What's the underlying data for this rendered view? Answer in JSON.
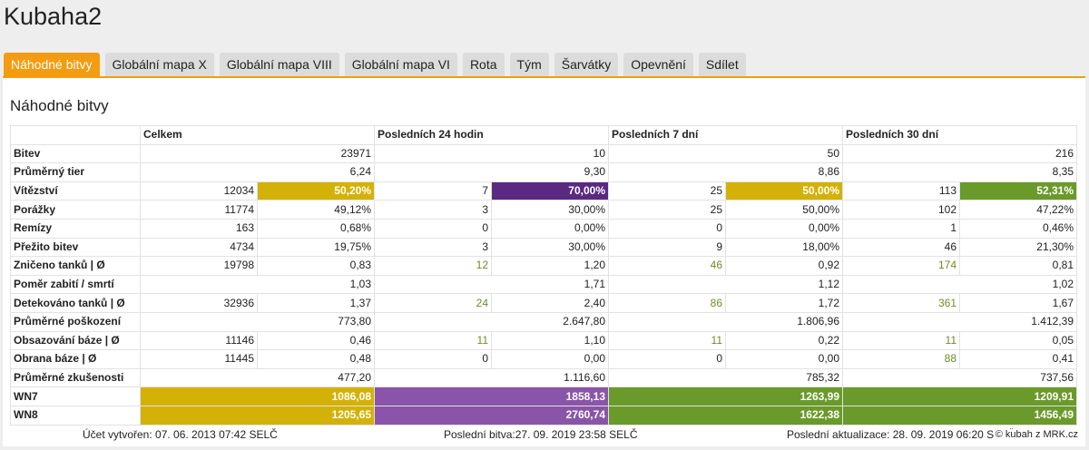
{
  "page_title": "Kubaha2",
  "tabs": [
    {
      "label": "Náhodné bitvy",
      "active": true
    },
    {
      "label": "Globální mapa X",
      "active": false
    },
    {
      "label": "Globální mapa VIII",
      "active": false
    },
    {
      "label": "Globální mapa VI",
      "active": false
    },
    {
      "label": "Rota",
      "active": false
    },
    {
      "label": "Tým",
      "active": false
    },
    {
      "label": "Šarvátky",
      "active": false
    },
    {
      "label": "Opevnění",
      "active": false
    },
    {
      "label": "Sdílet",
      "active": false
    }
  ],
  "panel_title": "Náhodné bitvy",
  "table": {
    "headers": [
      "",
      "Celkem",
      "Posledních 24 hodin",
      "Posledních 7 dní",
      "Posledních 30 dní"
    ],
    "rows": [
      {
        "label": "Bitev",
        "type": "single",
        "cells": [
          {
            "value": "23971"
          },
          {
            "value": "10"
          },
          {
            "value": "50"
          },
          {
            "value": "216"
          }
        ]
      },
      {
        "label": "Průměrný tier",
        "type": "single",
        "cells": [
          {
            "value": "6,24"
          },
          {
            "value": "9,30"
          },
          {
            "value": "8,86"
          },
          {
            "value": "8,35"
          }
        ]
      },
      {
        "label": "Vítězství",
        "type": "pair",
        "cells": [
          {
            "count": "12034",
            "pct": "50,20%",
            "color": "yellow"
          },
          {
            "count": "7",
            "pct": "70,00%",
            "color": "purple"
          },
          {
            "count": "25",
            "pct": "50,00%",
            "color": "yellow"
          },
          {
            "count": "113",
            "pct": "52,31%",
            "color": "green"
          }
        ]
      },
      {
        "label": "Porážky",
        "type": "pair",
        "cells": [
          {
            "count": "11774",
            "pct": "49,12%"
          },
          {
            "count": "3",
            "pct": "30,00%"
          },
          {
            "count": "25",
            "pct": "50,00%"
          },
          {
            "count": "102",
            "pct": "47,22%"
          }
        ]
      },
      {
        "label": "Remízy",
        "type": "pair",
        "cells": [
          {
            "count": "163",
            "pct": "0,68%"
          },
          {
            "count": "0",
            "pct": "0,00%"
          },
          {
            "count": "0",
            "pct": "0,00%"
          },
          {
            "count": "1",
            "pct": "0,46%"
          }
        ]
      },
      {
        "label": "Přežito bitev",
        "type": "pair",
        "cells": [
          {
            "count": "4734",
            "pct": "19,75%"
          },
          {
            "count": "3",
            "pct": "30,00%"
          },
          {
            "count": "9",
            "pct": "18,00%"
          },
          {
            "count": "46",
            "pct": "21,30%"
          }
        ]
      },
      {
        "label": "Zničeno tanků | Ø",
        "type": "pair",
        "cells": [
          {
            "count": "19798",
            "pct": "0,83"
          },
          {
            "count": "12",
            "pct": "1,20",
            "count_color": "green"
          },
          {
            "count": "46",
            "pct": "0,92",
            "count_color": "green"
          },
          {
            "count": "174",
            "pct": "0,81",
            "count_color": "green"
          }
        ]
      },
      {
        "label": "Poměr zabití / smrtí",
        "type": "single",
        "cells": [
          {
            "value": "1,03"
          },
          {
            "value": "1,71"
          },
          {
            "value": "1,12"
          },
          {
            "value": "1,02"
          }
        ]
      },
      {
        "label": "Detekováno tanků | Ø",
        "type": "pair",
        "cells": [
          {
            "count": "32936",
            "pct": "1,37"
          },
          {
            "count": "24",
            "pct": "2,40",
            "count_color": "green"
          },
          {
            "count": "86",
            "pct": "1,72",
            "count_color": "green"
          },
          {
            "count": "361",
            "pct": "1,67",
            "count_color": "green"
          }
        ]
      },
      {
        "label": "Průměrné poškození",
        "type": "single",
        "cells": [
          {
            "value": "773,80"
          },
          {
            "value": "2.647,80"
          },
          {
            "value": "1.806,96"
          },
          {
            "value": "1.412,39"
          }
        ]
      },
      {
        "label": "Obsazování báze | Ø",
        "type": "pair",
        "cells": [
          {
            "count": "11146",
            "pct": "0,46"
          },
          {
            "count": "11",
            "pct": "1,10",
            "count_color": "green"
          },
          {
            "count": "11",
            "pct": "0,22",
            "count_color": "green"
          },
          {
            "count": "11",
            "pct": "0,05",
            "count_color": "green"
          }
        ]
      },
      {
        "label": "Obrana báze | Ø",
        "type": "pair",
        "cells": [
          {
            "count": "11445",
            "pct": "0,48"
          },
          {
            "count": "0",
            "pct": "0,00"
          },
          {
            "count": "0",
            "pct": "0,00"
          },
          {
            "count": "88",
            "pct": "0,41",
            "count_color": "green"
          }
        ]
      },
      {
        "label": "Průměrné zkušenosti",
        "type": "single",
        "cells": [
          {
            "value": "477,20"
          },
          {
            "value": "1.116,60"
          },
          {
            "value": "785,32"
          },
          {
            "value": "737,56"
          }
        ]
      },
      {
        "label": "WN7",
        "type": "single",
        "cells": [
          {
            "value": "1086,08",
            "color": "yellow"
          },
          {
            "value": "1858,13",
            "color": "lpurple"
          },
          {
            "value": "1263,99",
            "color": "green"
          },
          {
            "value": "1209,91",
            "color": "green"
          }
        ]
      },
      {
        "label": "WN8",
        "type": "single",
        "cells": [
          {
            "value": "1205,65",
            "color": "yellow"
          },
          {
            "value": "2760,74",
            "color": "lpurple"
          },
          {
            "value": "1622,38",
            "color": "green"
          },
          {
            "value": "1456,49",
            "color": "green"
          }
        ]
      }
    ]
  },
  "footer": {
    "created": "Účet vytvořen: 07. 06. 2013 07:42 SELČ",
    "last_battle": "Poslední bitva:27. 09. 2019 23:58 SELČ",
    "last_update": "Poslední aktualizace: 28. 09. 2019 06:20 SELČ",
    "copyright": "© kubah z MRK.cz"
  },
  "colors": {
    "accent": "#f39c12",
    "yellow": "#d4b106",
    "purple": "#5a2a82",
    "light_purple": "#8a55a8",
    "green": "#6a9a2a"
  }
}
